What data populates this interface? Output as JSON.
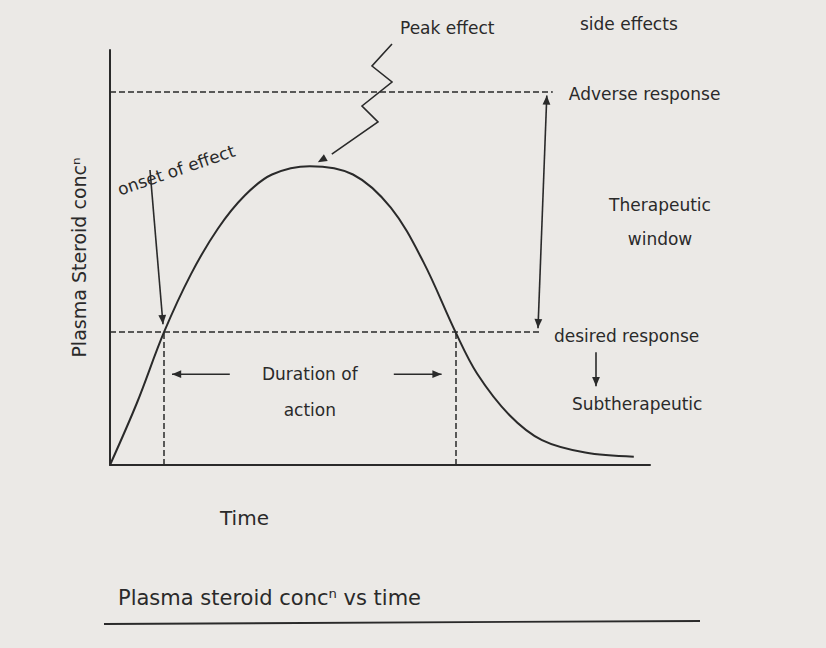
{
  "chart_data": {
    "type": "line",
    "title": "Plasma steroid concⁿ vs time",
    "x_label": "Time",
    "y_label": "Plasma Steroid concⁿ",
    "x": [
      0,
      5,
      10,
      15,
      20,
      25,
      30,
      37,
      45,
      52,
      58,
      64,
      68,
      74,
      80,
      88,
      97
    ],
    "values": [
      0,
      15,
      32,
      46,
      57,
      65,
      70,
      72,
      70,
      62,
      49,
      32,
      22,
      12,
      6,
      3,
      2
    ],
    "color": "#2a2a2a",
    "line_style": "solid",
    "xlim": [
      0,
      100
    ],
    "ylim": [
      0,
      100
    ],
    "tick_labels": false,
    "grid": false,
    "reference_lines": [
      {
        "label": "Adverse response",
        "value": 90,
        "x_range": [
          0,
          82
        ]
      },
      {
        "label": "desired response",
        "value": 32,
        "x_range": [
          0,
          80
        ]
      }
    ],
    "annotations": {
      "peak": "Peak effect",
      "side_effects": "side effects",
      "therapeutic_window": "Therapeutic window",
      "subtherapeutic": "Subtherapeutic",
      "onset": "onset of effect",
      "duration": {
        "label": "Duration of action",
        "from": 10,
        "to": 64
      }
    }
  }
}
